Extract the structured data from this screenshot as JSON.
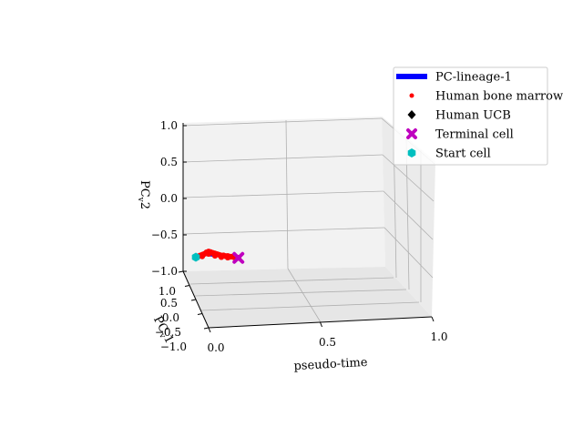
{
  "chart_data": {
    "type": "scatter3d",
    "title": "",
    "axes": {
      "x": {
        "label": "pseudo-time",
        "range": [
          0.0,
          1.0
        ],
        "ticks": [
          "0.0",
          "0.5",
          "1.0"
        ]
      },
      "y": {
        "label": "PC$_v$1",
        "label_main": "PC",
        "label_sub": "v",
        "label_tail": "1",
        "range": [
          -1.0,
          1.0
        ],
        "ticks": [
          "−1.0",
          "−0.5",
          "0.0",
          "0.5",
          "1.0"
        ]
      },
      "z": {
        "label": "PC$_v$2",
        "label_main": "PC",
        "label_sub": "v",
        "label_tail": "2",
        "range": [
          -1.0,
          1.0
        ],
        "ticks": [
          "−1.0",
          "−0.5",
          "0.0",
          "0.5",
          "1.0"
        ]
      }
    },
    "grid": true,
    "legend_position": "top-right",
    "legend": [
      {
        "label": "PC-lineage-1",
        "marker": "line",
        "color": "#0000ff"
      },
      {
        "label": "Human bone marrow",
        "marker": "dot",
        "color": "#ff0000"
      },
      {
        "label": "Human UCB",
        "marker": "diamond",
        "color": "#000000"
      },
      {
        "label": "Terminal cell",
        "marker": "x",
        "color": "#bf00bf"
      },
      {
        "label": "Start cell",
        "marker": "hexagon",
        "color": "#00bfbf"
      }
    ],
    "series": [
      {
        "name": "Human bone marrow",
        "color": "#ff0000",
        "points": [
          [
            0.0,
            0.0,
            -0.43
          ],
          [
            0.01,
            0.0,
            -0.42
          ],
          [
            0.02,
            0.0,
            -0.41
          ],
          [
            0.03,
            0.0,
            -0.4
          ],
          [
            0.04,
            0.0,
            -0.39
          ],
          [
            0.05,
            0.0,
            -0.37
          ],
          [
            0.06,
            0.0,
            -0.36
          ],
          [
            0.07,
            0.0,
            -0.37
          ],
          [
            0.08,
            0.0,
            -0.38
          ],
          [
            0.09,
            0.0,
            -0.39
          ],
          [
            0.1,
            0.0,
            -0.4
          ],
          [
            0.11,
            0.0,
            -0.41
          ],
          [
            0.12,
            0.0,
            -0.42
          ],
          [
            0.13,
            0.0,
            -0.42
          ],
          [
            0.14,
            0.0,
            -0.43
          ],
          [
            0.15,
            0.0,
            -0.43
          ],
          [
            0.16,
            0.0,
            -0.44
          ],
          [
            0.17,
            0.0,
            -0.44
          ],
          [
            0.18,
            0.0,
            -0.45
          ],
          [
            0.19,
            0.0,
            -0.45
          ],
          [
            0.2,
            0.0,
            -0.46
          ],
          [
            0.03,
            0.0,
            -0.42
          ],
          [
            0.06,
            0.0,
            -0.39
          ],
          [
            0.09,
            0.0,
            -0.42
          ],
          [
            0.12,
            0.0,
            -0.44
          ],
          [
            0.15,
            0.0,
            -0.45
          ],
          [
            0.18,
            0.0,
            -0.43
          ]
        ]
      },
      {
        "name": "PC-lineage-1",
        "color": "#0000ff",
        "points": [
          [
            0.0,
            0.0,
            -0.43
          ],
          [
            0.05,
            0.0,
            -0.4
          ],
          [
            0.1,
            0.0,
            -0.42
          ],
          [
            0.15,
            0.0,
            -0.44
          ],
          [
            0.2,
            0.0,
            -0.46
          ]
        ]
      },
      {
        "name": "Terminal cell",
        "color": "#bf00bf",
        "points": [
          [
            0.2,
            0.0,
            -0.46
          ]
        ]
      },
      {
        "name": "Start cell",
        "color": "#00bfbf",
        "points": [
          [
            0.0,
            0.0,
            -0.43
          ]
        ]
      }
    ]
  }
}
